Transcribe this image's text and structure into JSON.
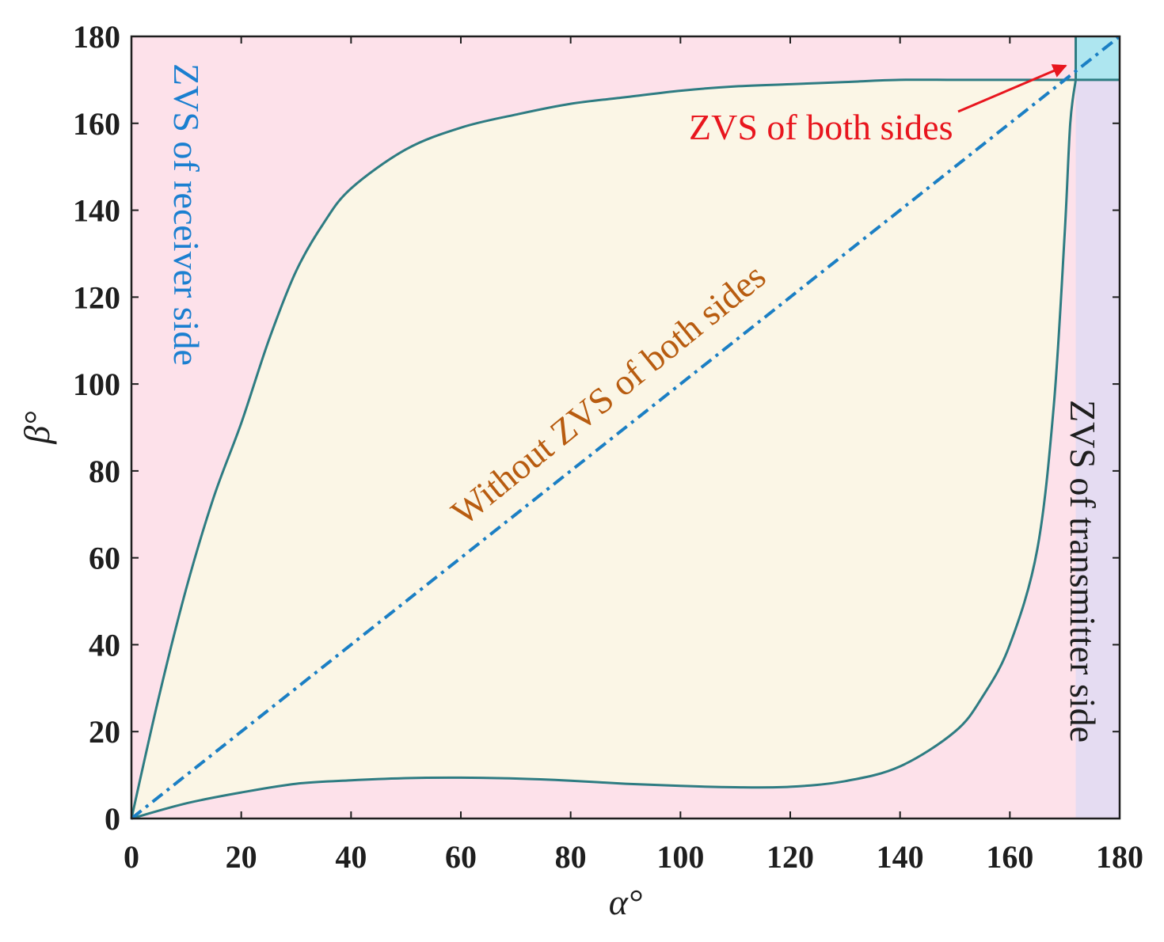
{
  "chart_data": {
    "type": "area",
    "xlabel": "α°",
    "ylabel": "β°",
    "xlim": [
      0,
      180
    ],
    "ylim": [
      0,
      180
    ],
    "xticks": [
      0,
      20,
      40,
      60,
      80,
      100,
      120,
      140,
      160,
      180
    ],
    "yticks": [
      0,
      20,
      40,
      60,
      80,
      100,
      120,
      140,
      160,
      180
    ],
    "grid": false,
    "colors": {
      "receiver_region": "#fde1ea",
      "transmitter_region": "#e5dcf2",
      "both_region": "#aee6f0",
      "without_region": "#fbf6e6",
      "boundary": "#2e7c82",
      "diagonal": "#1b7fc4",
      "arrow": "#e8161e"
    },
    "upper_boundary": {
      "x": [
        0,
        5,
        10,
        15,
        20,
        25,
        30,
        35,
        40,
        50,
        60,
        70,
        80,
        90,
        100,
        110,
        120,
        130,
        140,
        150,
        160,
        170,
        172
      ],
      "y": [
        0,
        28,
        53,
        74,
        91,
        110,
        126,
        137,
        145,
        154,
        159,
        162,
        164.5,
        166,
        167.5,
        168.5,
        169,
        169.5,
        170,
        170,
        170,
        170,
        170
      ]
    },
    "lower_boundary": {
      "x": [
        0,
        10,
        20,
        30,
        40,
        50,
        60,
        70,
        80,
        90,
        100,
        110,
        120,
        130,
        140,
        150,
        155,
        160,
        165,
        168,
        170,
        171,
        172
      ],
      "y": [
        0,
        3.5,
        6,
        8,
        8.8,
        9.3,
        9.4,
        9.2,
        8.7,
        8.0,
        7.5,
        7.2,
        7.3,
        8.6,
        12,
        20,
        28,
        40,
        62,
        95,
        135,
        160,
        170
      ]
    },
    "diagonal": {
      "x": [
        0,
        180
      ],
      "y": [
        0,
        180
      ]
    },
    "both_region_corner": {
      "x": 172,
      "y": 170
    },
    "annotations": {
      "receiver": "ZVS of receiver side",
      "transmitter": "ZVS of transmitter side",
      "both": "ZVS of both sides",
      "without": "Without ZVS of both sides"
    },
    "annotation_colors": {
      "receiver": "#1b7fd0",
      "transmitter": "#1e1e1e",
      "both": "#e8161e",
      "without": "#b85c10"
    }
  }
}
